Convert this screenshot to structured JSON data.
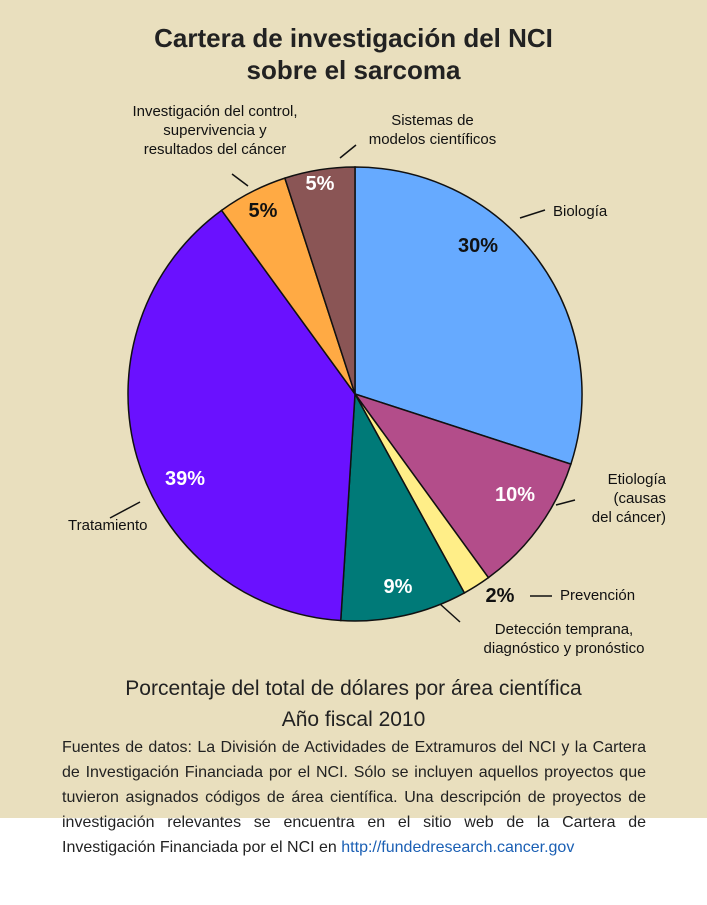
{
  "chart_data": {
    "type": "pie",
    "title": "Cartera de investigación del NCI\nsobre el sarcoma",
    "subtitle": "Porcentaje del total de dólares por área científica\nAño fiscal 2010",
    "note": "Fuentes de datos: La División de Actividades de Extramuros del NCI y la Cartera de Investigación Financiada por el NCI. Sólo se incluyen aquellos proyectos que tuvieron asignados códigos de área científica. Una descripción de proyectos de investigación relevantes se encuentra en el sitio web de la Cartera de Investigación Financiada por el NCI en",
    "note_link": "http://fundedresearch.cancer.gov",
    "categories": [
      "Biología",
      "Etiología\n(causas\ndel cáncer)",
      "Prevención",
      "Detección temprana,\ndiagnóstico y pronóstico",
      "Tratamiento",
      "Investigación del control,\nsupervivencia y\nresultados del cáncer",
      "Sistemas de\nmodelos científicos"
    ],
    "values": [
      30,
      10,
      2,
      9,
      39,
      5,
      5
    ],
    "value_labels": [
      "30%",
      "10%",
      "2%",
      "9%",
      "39%",
      "5%",
      "5%"
    ],
    "colors": [
      "#66aaff",
      "#b34d8a",
      "#ffee88",
      "#007a78",
      "#6a11ff",
      "#ffaa44",
      "#8a5555"
    ]
  }
}
